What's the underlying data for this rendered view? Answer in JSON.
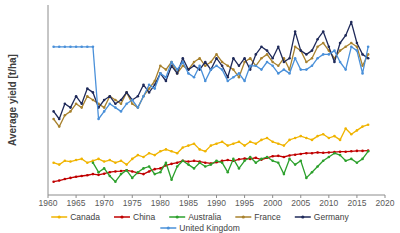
{
  "chart_data": {
    "type": "line",
    "y_label": "Average yield [t/ha]",
    "x": [
      1961,
      1962,
      1963,
      1964,
      1965,
      1966,
      1967,
      1968,
      1969,
      1970,
      1971,
      1972,
      1973,
      1974,
      1975,
      1976,
      1977,
      1978,
      1979,
      1980,
      1981,
      1982,
      1983,
      1984,
      1985,
      1986,
      1987,
      1988,
      1989,
      1990,
      1991,
      1992,
      1993,
      1994,
      1995,
      1996,
      1997,
      1998,
      1999,
      2000,
      2001,
      2002,
      2003,
      2004,
      2005,
      2006,
      2007,
      2008,
      2009,
      2010,
      2011,
      2012,
      2013,
      2014,
      2015,
      2016,
      2017
    ],
    "xlim": [
      1960,
      2020
    ],
    "xticks": [
      1960,
      1965,
      1970,
      1975,
      1980,
      1985,
      1990,
      1995,
      2000,
      2005,
      2010,
      2015,
      2020
    ],
    "ylim": [
      0,
      5
    ],
    "tick_labels": "x",
    "grid": false,
    "legend": "bottom",
    "marker": "circle",
    "series": [
      {
        "name": "Canada",
        "color": "#f0b400",
        "values": [
          0.85,
          0.8,
          0.9,
          0.88,
          0.92,
          0.95,
          0.85,
          0.9,
          0.95,
          0.88,
          0.92,
          0.85,
          0.9,
          0.8,
          0.95,
          1.05,
          1.0,
          1.1,
          1.05,
          1.15,
          1.2,
          1.15,
          1.1,
          1.25,
          1.3,
          1.35,
          1.2,
          1.15,
          1.3,
          1.35,
          1.4,
          1.3,
          1.35,
          1.4,
          1.3,
          1.4,
          1.35,
          1.45,
          1.5,
          1.4,
          1.35,
          1.3,
          1.45,
          1.5,
          1.55,
          1.5,
          1.45,
          1.55,
          1.6,
          1.5,
          1.55,
          1.45,
          1.75,
          1.6,
          1.7,
          1.8,
          1.85
        ]
      },
      {
        "name": "China",
        "color": "#c00000",
        "values": [
          0.35,
          0.38,
          0.42,
          0.45,
          0.48,
          0.5,
          0.52,
          0.55,
          0.53,
          0.56,
          0.6,
          0.62,
          0.63,
          0.65,
          0.62,
          0.58,
          0.55,
          0.62,
          0.68,
          0.7,
          0.78,
          0.82,
          0.85,
          0.9,
          0.88,
          0.9,
          0.88,
          0.85,
          0.83,
          0.86,
          0.9,
          0.92,
          0.9,
          0.94,
          0.96,
          0.95,
          0.98,
          0.93,
          0.98,
          1.02,
          1.03,
          1.0,
          1.04,
          1.06,
          1.08,
          1.1,
          1.1,
          1.12,
          1.11,
          1.12,
          1.13,
          1.14,
          1.14,
          1.15,
          1.16,
          1.16,
          1.17
        ]
      },
      {
        "name": "Australia",
        "color": "#2ca02c",
        "values": [
          null,
          null,
          null,
          null,
          null,
          null,
          null,
          0.85,
          0.6,
          0.7,
          0.5,
          0.35,
          0.55,
          0.65,
          0.45,
          0.6,
          0.7,
          0.75,
          0.55,
          0.6,
          0.85,
          0.4,
          0.75,
          0.9,
          0.8,
          0.7,
          0.85,
          0.75,
          0.8,
          0.9,
          0.85,
          0.6,
          0.95,
          0.7,
          0.9,
          1.0,
          0.85,
          0.95,
          1.0,
          0.9,
          0.85,
          0.55,
          0.95,
          0.8,
          0.9,
          0.45,
          0.6,
          0.75,
          0.9,
          1.0,
          1.1,
          1.05,
          0.9,
          0.95,
          0.85,
          0.95,
          1.15
        ]
      },
      {
        "name": "France",
        "color": "#a8822e",
        "values": [
          2.0,
          1.8,
          2.1,
          2.2,
          2.4,
          2.3,
          2.6,
          2.5,
          2.4,
          2.3,
          2.6,
          2.5,
          2.4,
          2.7,
          2.4,
          2.3,
          2.6,
          2.8,
          3.0,
          3.4,
          3.3,
          3.5,
          3.2,
          3.4,
          3.3,
          3.5,
          3.6,
          3.4,
          3.5,
          3.7,
          3.5,
          3.4,
          3.3,
          3.1,
          3.5,
          3.6,
          3.4,
          3.6,
          3.7,
          3.5,
          3.4,
          3.6,
          3.3,
          3.9,
          3.8,
          3.5,
          3.6,
          3.9,
          4.0,
          3.8,
          3.6,
          3.8,
          3.9,
          4.0,
          3.9,
          3.4,
          3.7
        ]
      },
      {
        "name": "Germany",
        "color": "#1f2a5a",
        "values": [
          2.2,
          2.0,
          2.4,
          2.3,
          2.6,
          2.4,
          2.8,
          2.7,
          2.3,
          2.5,
          2.6,
          2.4,
          2.5,
          2.7,
          2.5,
          2.6,
          2.9,
          2.7,
          2.9,
          3.2,
          3.0,
          3.4,
          3.2,
          3.6,
          3.3,
          3.4,
          3.3,
          3.5,
          3.3,
          3.6,
          3.4,
          3.1,
          3.6,
          3.4,
          3.6,
          3.3,
          3.7,
          3.9,
          3.8,
          3.6,
          3.9,
          3.5,
          3.6,
          4.3,
          3.8,
          3.7,
          3.8,
          4.1,
          4.3,
          3.9,
          3.5,
          4.0,
          4.2,
          4.55,
          4.0,
          3.7,
          3.6
        ]
      },
      {
        "name": "United Kingdom",
        "color": "#4a90d9",
        "values": [
          3.9,
          3.9,
          3.9,
          3.9,
          3.9,
          3.9,
          3.9,
          3.9,
          2.0,
          2.2,
          2.4,
          2.3,
          2.2,
          2.4,
          2.5,
          2.3,
          2.6,
          2.9,
          2.8,
          3.2,
          3.1,
          3.5,
          3.3,
          3.5,
          3.2,
          3.1,
          3.4,
          3.0,
          3.3,
          3.4,
          3.3,
          3.0,
          3.1,
          3.2,
          3.0,
          3.4,
          3.4,
          3.3,
          3.5,
          3.4,
          3.2,
          3.3,
          3.2,
          3.6,
          3.3,
          3.3,
          3.4,
          3.6,
          3.7,
          3.7,
          3.8,
          3.5,
          3.3,
          3.9,
          3.8,
          3.2,
          3.9
        ]
      }
    ]
  }
}
